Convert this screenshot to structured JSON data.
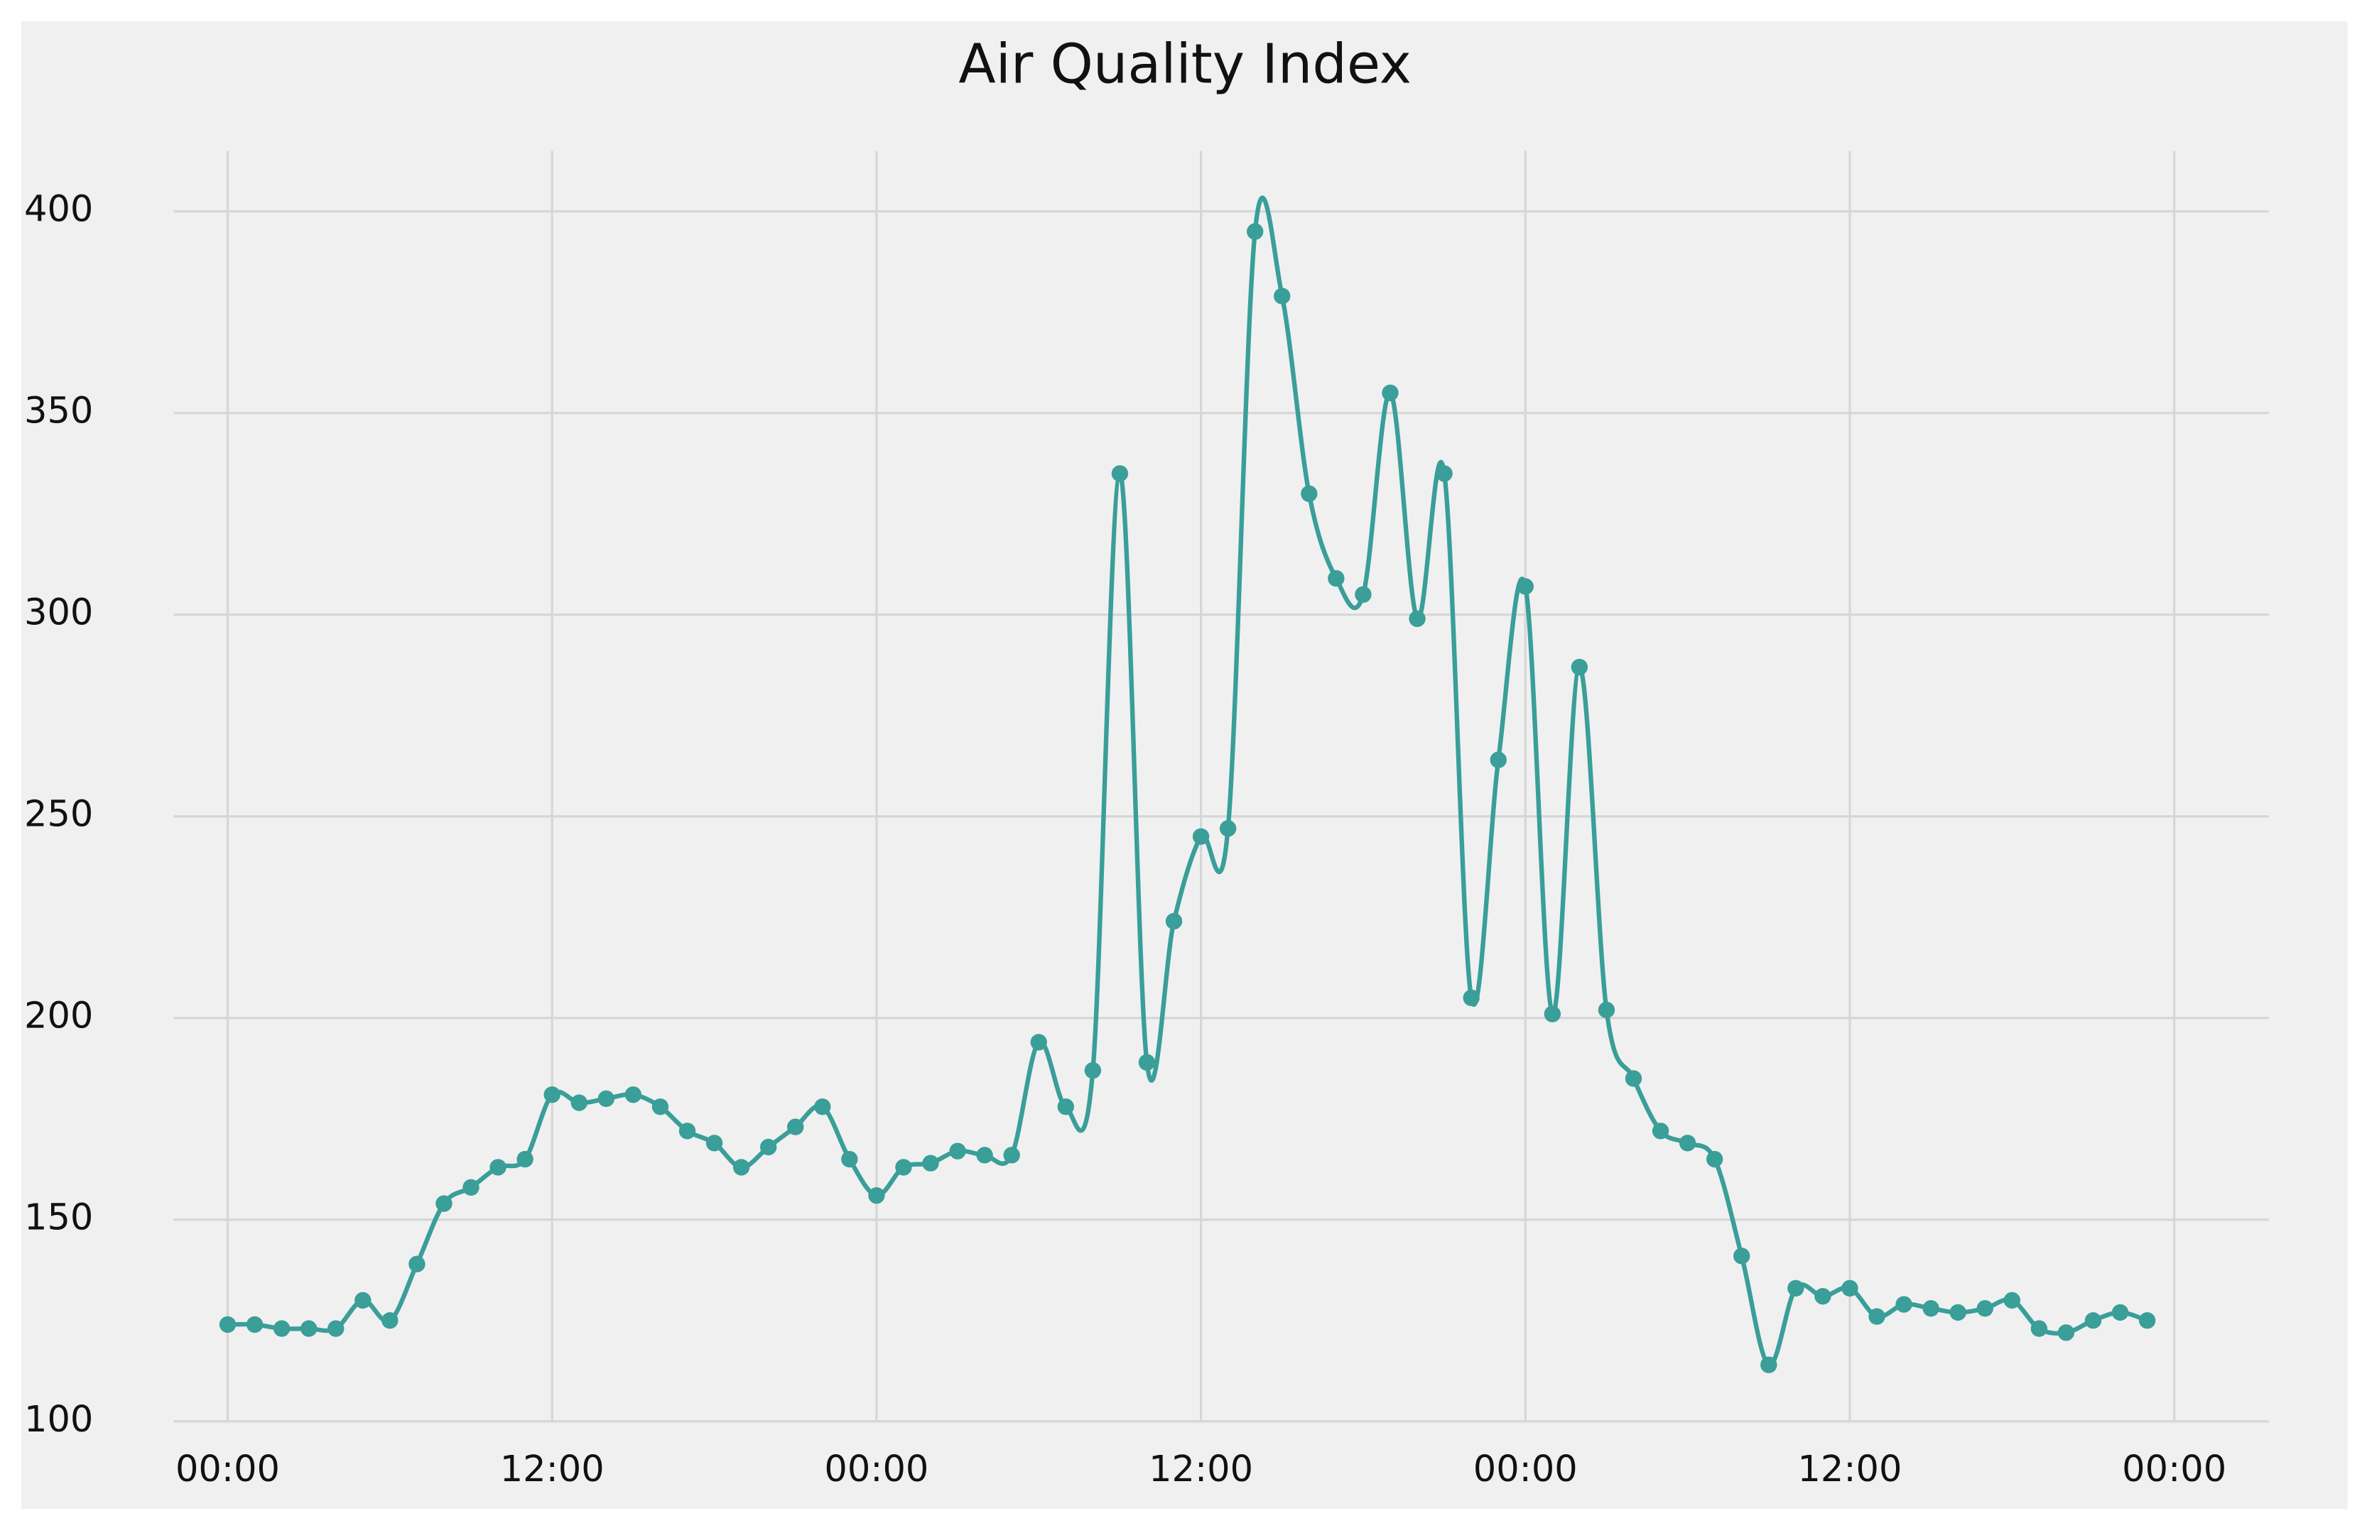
{
  "chart_data": {
    "type": "line",
    "title": "Air Quality Index",
    "x": [
      0,
      1,
      2,
      3,
      4,
      5,
      6,
      7,
      8,
      9,
      10,
      11,
      12,
      13,
      14,
      15,
      16,
      17,
      18,
      19,
      20,
      21,
      22,
      23,
      24,
      25,
      26,
      27,
      28,
      29,
      30,
      31,
      32,
      33,
      34,
      35,
      36,
      37,
      38,
      39,
      40,
      41,
      42,
      43,
      44,
      45,
      46,
      47,
      48,
      49,
      50,
      51,
      52,
      53,
      54,
      55,
      56,
      57,
      58,
      59,
      60,
      61,
      62,
      63,
      64,
      65,
      66,
      67,
      68,
      69,
      70,
      71
    ],
    "series": [
      {
        "name": "Air Quality Index",
        "color": "#3a9e99",
        "values": [
          124,
          124,
          123,
          123,
          123,
          130,
          125,
          139,
          154,
          158,
          163,
          165,
          181,
          179,
          180,
          181,
          178,
          172,
          169,
          163,
          168,
          173,
          178,
          165,
          156,
          163,
          164,
          167,
          166,
          166,
          194,
          178,
          187,
          335,
          189,
          224,
          245,
          247,
          395,
          379,
          330,
          309,
          305,
          355,
          299,
          335,
          205,
          264,
          307,
          201,
          287,
          202,
          185,
          172,
          169,
          165,
          141,
          114,
          133,
          131,
          133,
          126,
          129,
          128,
          127,
          128,
          130,
          123,
          122,
          125,
          127,
          125
        ]
      }
    ],
    "xlim": [
      -2,
      75.5
    ],
    "xticks": [
      {
        "value": 0,
        "label": "00:00"
      },
      {
        "value": 12,
        "label": "12:00"
      },
      {
        "value": 24,
        "label": "00:00"
      },
      {
        "value": 36,
        "label": "12:00"
      },
      {
        "value": 48,
        "label": "00:00"
      },
      {
        "value": 60,
        "label": "12:00"
      },
      {
        "value": 72,
        "label": "00:00"
      }
    ],
    "ylim": [
      100,
      415
    ],
    "yticks": [
      100,
      150,
      200,
      250,
      300,
      350,
      400
    ],
    "grid": true
  }
}
